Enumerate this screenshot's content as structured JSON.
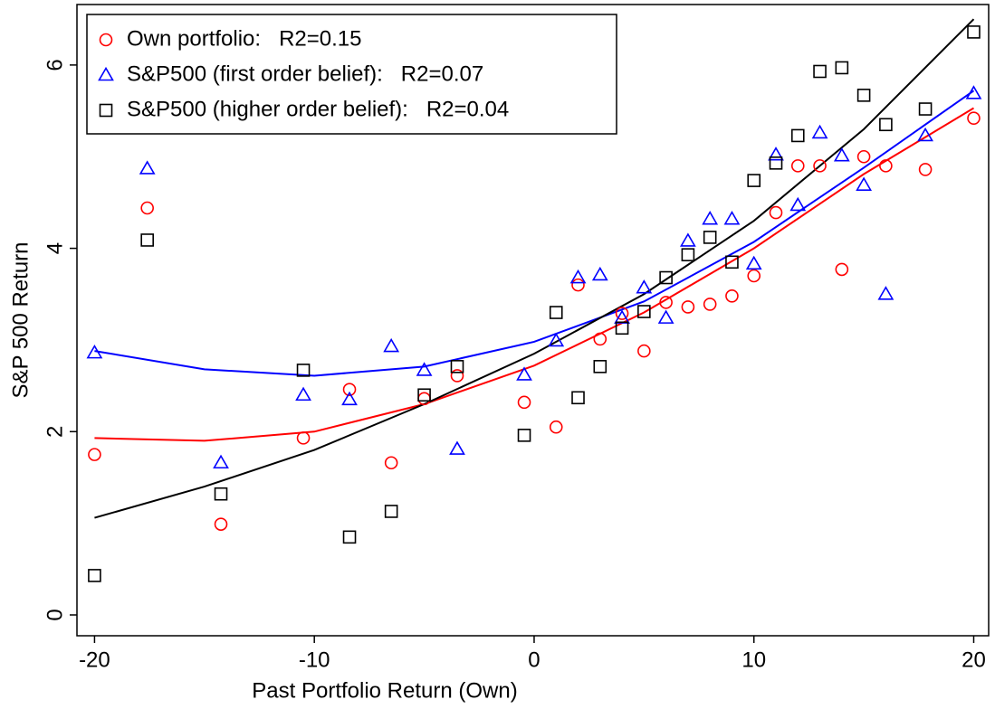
{
  "chart_data": {
    "type": "scatter",
    "xlabel": "Past Portfolio Return (Own)",
    "ylabel": "S&P 500 Return",
    "xlim": [
      -20.8,
      20.68
    ],
    "ylim": [
      -0.227,
      6.66
    ],
    "xticks": [
      -20,
      -10,
      0,
      10,
      20
    ],
    "yticks": [
      0,
      2,
      4,
      6
    ],
    "grid": false,
    "legend": "upper left",
    "x": [
      -20,
      -17.6,
      -14.25,
      -10.5,
      -8.4,
      -6.5,
      -5,
      -3.5,
      -0.45,
      1,
      2,
      3,
      4,
      5,
      6,
      7,
      8,
      9,
      10,
      11,
      12,
      13,
      14,
      15,
      16,
      17.8,
      20
    ],
    "series": [
      {
        "name": "Own portfolio:   R2=0.15",
        "color": "#ff0000",
        "marker": "circle",
        "values": [
          1.75,
          4.44,
          0.99,
          1.93,
          2.46,
          1.66,
          2.36,
          2.61,
          2.32,
          2.05,
          3.6,
          3.01,
          3.29,
          2.88,
          3.41,
          3.36,
          3.39,
          3.48,
          3.7,
          4.39,
          4.9,
          4.9,
          3.77,
          5.0,
          4.9,
          4.86,
          5.42
        ]
      },
      {
        "name": "S&P500 (first order belief):   R2=0.07",
        "color": "#0000ff",
        "marker": "triangle",
        "values": [
          2.86,
          4.87,
          1.66,
          2.4,
          2.35,
          2.93,
          2.67,
          1.81,
          2.62,
          2.99,
          3.68,
          3.71,
          3.24,
          3.57,
          3.24,
          4.08,
          4.32,
          4.32,
          3.83,
          5.02,
          4.47,
          5.26,
          5.01,
          4.69,
          3.5,
          5.23,
          5.69
        ]
      },
      {
        "name": "S&P500 (higher order belief):   R2=0.04",
        "color": "#000000",
        "marker": "square",
        "values": [
          0.43,
          4.09,
          1.32,
          2.67,
          0.85,
          1.13,
          2.4,
          2.71,
          1.96,
          3.3,
          2.37,
          2.71,
          3.13,
          3.31,
          3.68,
          3.93,
          4.12,
          3.85,
          4.74,
          4.93,
          5.23,
          5.93,
          5.97,
          5.67,
          5.35,
          5.52,
          6.36
        ]
      }
    ],
    "fits": [
      {
        "color": "#ff0000",
        "x": [
          -20,
          -15,
          -10,
          -5,
          0,
          5,
          10,
          15,
          20
        ],
        "values": [
          1.93,
          1.9,
          2.0,
          2.3,
          2.72,
          3.3,
          4.0,
          4.81,
          5.53
        ]
      },
      {
        "color": "#0000ff",
        "x": [
          -20,
          -15,
          -10,
          -5,
          0,
          5,
          10,
          15,
          20
        ],
        "values": [
          2.88,
          2.68,
          2.61,
          2.71,
          2.98,
          3.42,
          4.07,
          4.88,
          5.72
        ]
      },
      {
        "color": "#000000",
        "x": [
          -20,
          -15,
          -10,
          -5,
          0,
          5,
          10,
          15,
          20
        ],
        "values": [
          1.06,
          1.4,
          1.8,
          2.3,
          2.85,
          3.5,
          4.3,
          5.3,
          6.5
        ]
      }
    ]
  }
}
